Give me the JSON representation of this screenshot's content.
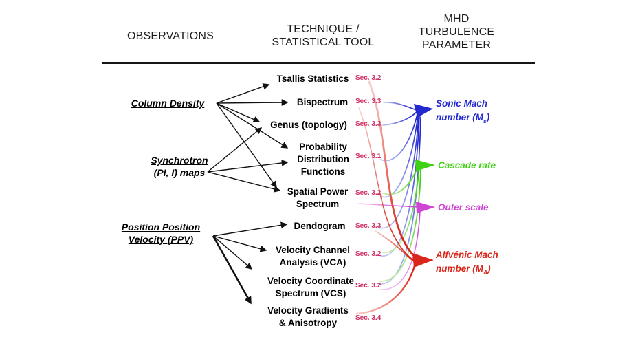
{
  "headers": {
    "observations": "OBSERVATIONS",
    "technique_line1": "TECHNIQUE /",
    "technique_line2": "STATISTICAL TOOL",
    "parameter_line1": "MHD",
    "parameter_line2": "TURBULENCE",
    "parameter_line3": "PARAMETER"
  },
  "observations": [
    {
      "id": "column-density",
      "lines": [
        "Column Density"
      ]
    },
    {
      "id": "synchrotron",
      "lines": [
        "Synchrotron",
        "(PI, I) maps"
      ]
    },
    {
      "id": "ppv",
      "lines": [
        "Position Position",
        "Velocity (PPV)"
      ]
    }
  ],
  "techniques": [
    {
      "id": "tsallis",
      "lines": [
        "Tsallis Statistics"
      ],
      "sec": "Sec. 3.2"
    },
    {
      "id": "bispectrum",
      "lines": [
        "Bispectrum"
      ],
      "sec": "Sec. 3.3"
    },
    {
      "id": "genus",
      "lines": [
        "Genus (topology)"
      ],
      "sec": "Sec. 3.3"
    },
    {
      "id": "pdf",
      "lines": [
        "Probability",
        "Distribution",
        "Functions"
      ],
      "sec": "Sec. 3.1"
    },
    {
      "id": "sps",
      "lines": [
        "Spatial Power",
        "Spectrum"
      ],
      "sec": "Sec. 3.2"
    },
    {
      "id": "dendogram",
      "lines": [
        "Dendogram"
      ],
      "sec": "Sec. 3.3"
    },
    {
      "id": "vca",
      "lines": [
        "Velocity Channel",
        "Analysis (VCA)"
      ],
      "sec": "Sec. 3.2"
    },
    {
      "id": "vcs",
      "lines": [
        "Velocity Coordinate",
        "Spectrum (VCS)"
      ],
      "sec": "Sec. 3.2"
    },
    {
      "id": "velgrad",
      "lines": [
        "Velocity Gradients",
        "& Anisotropy"
      ],
      "sec": "Sec. 3.4"
    }
  ],
  "parameters": [
    {
      "id": "sonic",
      "line1": "Sonic Mach",
      "line2_pre": "number (M",
      "line2_sub": "s",
      "line2_post": ")",
      "color": "#2328cf"
    },
    {
      "id": "cascade",
      "line1": "Cascade rate",
      "color": "#3fd214"
    },
    {
      "id": "outer",
      "line1": "Outer scale",
      "color": "#cf46d4"
    },
    {
      "id": "alfvenic",
      "line1": "Alfvénic Mach",
      "line2_pre": "number (M",
      "line2_sub": "A",
      "line2_post": ")",
      "color": "#da251a"
    }
  ],
  "black_arrows": [
    {
      "from": "column-density",
      "to": "tsallis"
    },
    {
      "from": "column-density",
      "to": "bispectrum"
    },
    {
      "from": "column-density",
      "to": "genus"
    },
    {
      "from": "column-density",
      "to": "pdf"
    },
    {
      "from": "column-density",
      "to": "sps"
    },
    {
      "from": "synchrotron",
      "to": "genus"
    },
    {
      "from": "synchrotron",
      "to": "pdf"
    },
    {
      "from": "synchrotron",
      "to": "sps"
    },
    {
      "from": "ppv",
      "to": "dendogram"
    },
    {
      "from": "ppv",
      "to": "vca"
    },
    {
      "from": "ppv",
      "to": "vcs"
    },
    {
      "from": "ppv",
      "to": "velgrad",
      "thick": true
    }
  ],
  "colored_links": [
    {
      "from": "bispectrum",
      "to": "sonic"
    },
    {
      "from": "genus",
      "to": "sonic"
    },
    {
      "from": "pdf",
      "to": "sonic"
    },
    {
      "from": "sps",
      "to": "sonic"
    },
    {
      "from": "dendogram",
      "to": "sonic"
    },
    {
      "from": "vca",
      "to": "sonic"
    },
    {
      "from": "vcs",
      "to": "sonic"
    },
    {
      "from": "sps",
      "to": "cascade"
    },
    {
      "from": "vca",
      "to": "cascade"
    },
    {
      "from": "vcs",
      "to": "cascade"
    },
    {
      "from": "sps",
      "to": "outer"
    },
    {
      "from": "vcs",
      "to": "outer"
    },
    {
      "from": "tsallis",
      "to": "alfvenic"
    },
    {
      "from": "bispectrum",
      "to": "alfvenic"
    },
    {
      "from": "dendogram",
      "to": "alfvenic"
    },
    {
      "from": "velgrad",
      "to": "alfvenic"
    }
  ],
  "colors": {
    "sec_label": "#d02f63",
    "arrow": "#111111",
    "rule": "#151515",
    "sonic": "#2328cf",
    "cascade": "#3fd214",
    "outer": "#cf46d4",
    "alfvenic": "#da251a"
  }
}
